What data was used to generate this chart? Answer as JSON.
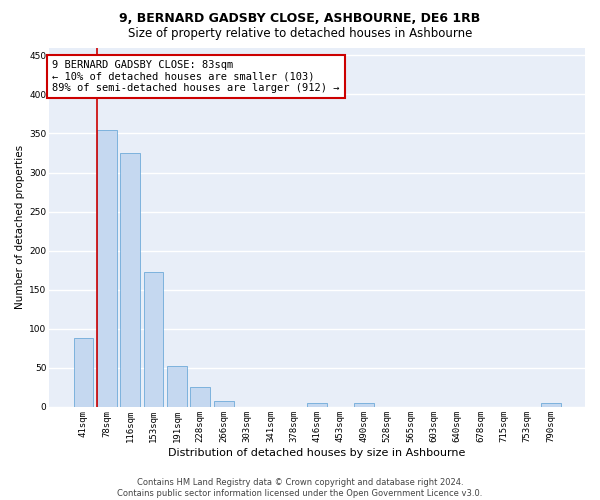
{
  "title": "9, BERNARD GADSBY CLOSE, ASHBOURNE, DE6 1RB",
  "subtitle": "Size of property relative to detached houses in Ashbourne",
  "xlabel": "Distribution of detached houses by size in Ashbourne",
  "ylabel": "Number of detached properties",
  "categories": [
    "41sqm",
    "78sqm",
    "116sqm",
    "153sqm",
    "191sqm",
    "228sqm",
    "266sqm",
    "303sqm",
    "341sqm",
    "378sqm",
    "416sqm",
    "453sqm",
    "490sqm",
    "528sqm",
    "565sqm",
    "603sqm",
    "640sqm",
    "678sqm",
    "715sqm",
    "753sqm",
    "790sqm"
  ],
  "values": [
    88,
    355,
    325,
    173,
    52,
    26,
    8,
    0,
    0,
    0,
    5,
    0,
    5,
    0,
    0,
    0,
    0,
    0,
    0,
    0,
    5
  ],
  "bar_color": "#c5d8f0",
  "bar_edge_color": "#5a9fd4",
  "property_line_color": "#cc0000",
  "property_line_bar_index": 1,
  "annotation_text": "9 BERNARD GADSBY CLOSE: 83sqm\n← 10% of detached houses are smaller (103)\n89% of semi-detached houses are larger (912) →",
  "annotation_box_color": "#ffffff",
  "annotation_box_edge_color": "#cc0000",
  "ylim": [
    0,
    460
  ],
  "yticks": [
    0,
    50,
    100,
    150,
    200,
    250,
    300,
    350,
    400,
    450
  ],
  "footer_line1": "Contains HM Land Registry data © Crown copyright and database right 2024.",
  "footer_line2": "Contains public sector information licensed under the Open Government Licence v3.0.",
  "background_color": "#ffffff",
  "plot_bg_color": "#e8eef8",
  "grid_color": "#ffffff",
  "title_fontsize": 9,
  "subtitle_fontsize": 8.5,
  "ylabel_fontsize": 7.5,
  "xlabel_fontsize": 8,
  "tick_fontsize": 6.5,
  "annotation_fontsize": 7.5,
  "footer_fontsize": 6
}
